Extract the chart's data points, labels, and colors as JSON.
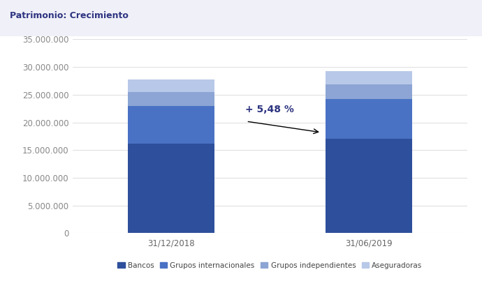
{
  "title": "Patrimonio: Crecimiento",
  "categories": [
    "31/12/2018",
    "31/06/2019"
  ],
  "bancos": [
    16200000,
    17100000
  ],
  "grupos_internacionales": [
    6800000,
    7100000
  ],
  "grupos_independientes": [
    2500000,
    2700000
  ],
  "aseguradoras": [
    2300000,
    2400000
  ],
  "colors": {
    "bancos": "#2e4f9b",
    "grupos_internacionales": "#4a72c4",
    "grupos_independientes": "#8ca5d4",
    "aseguradoras": "#b8c8e8"
  },
  "legend_labels": [
    "Bancos",
    "Grupos internacionales",
    "Grupos independientes",
    "Aseguradoras"
  ],
  "annotation_text": "+ 5,48 %",
  "ylim": [
    0,
    35000000
  ],
  "yticks": [
    0,
    5000000,
    10000000,
    15000000,
    20000000,
    25000000,
    30000000,
    35000000
  ],
  "title_color": "#2d3480",
  "annotation_color": "#2d3480",
  "background_color": "#ffffff",
  "grid_color": "#e0e0e0",
  "title_bg_color": "#f0f0f8"
}
